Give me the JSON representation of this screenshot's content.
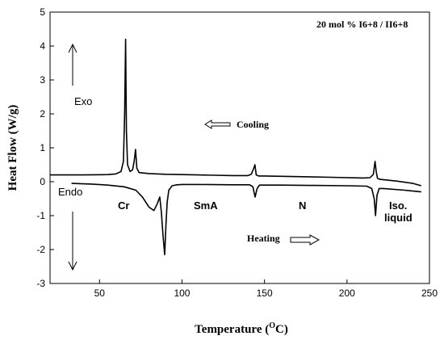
{
  "chart_data": {
    "type": "line",
    "title": "",
    "xlabel_main": "Temperature (",
    "xlabel_sup": "O",
    "xlabel_tail": "C)",
    "ylabel": "Heat Flow (W/g)",
    "xlim": [
      20,
      250
    ],
    "ylim": [
      -3,
      5
    ],
    "x_ticks": [
      50,
      100,
      150,
      200,
      250
    ],
    "y_ticks": [
      -3,
      -2,
      -1,
      0,
      1,
      2,
      3,
      4,
      5
    ],
    "grid": false,
    "legend": "none",
    "series": [
      {
        "label": "Cooling",
        "x": [
          20,
          40,
          55,
          60,
          63,
          64.5,
          65.2,
          65.8,
          66.3,
          67,
          68.5,
          70,
          71,
          71.8,
          72.6,
          74,
          80,
          90,
          100,
          110,
          120,
          130,
          140,
          142,
          143.5,
          144.2,
          145,
          146.5,
          150,
          170,
          190,
          210,
          214,
          216,
          217,
          217.7,
          218.5,
          220,
          230,
          240,
          245
        ],
        "y": [
          0.2,
          0.2,
          0.21,
          0.23,
          0.3,
          0.6,
          2.0,
          4.2,
          1.5,
          0.5,
          0.3,
          0.35,
          0.6,
          0.95,
          0.4,
          0.27,
          0.24,
          0.22,
          0.21,
          0.2,
          0.19,
          0.18,
          0.18,
          0.22,
          0.4,
          0.5,
          0.2,
          0.17,
          0.17,
          0.15,
          0.13,
          0.11,
          0.12,
          0.22,
          0.6,
          0.3,
          0.1,
          0.07,
          0.02,
          -0.05,
          -0.12
        ]
      },
      {
        "label": "Heating",
        "x": [
          33,
          45,
          55,
          65,
          72,
          76,
          80,
          83,
          85,
          86.5,
          87.5,
          88.5,
          89.5,
          90.2,
          91,
          92,
          94,
          97,
          100,
          110,
          130,
          141,
          143,
          144.3,
          145.5,
          147,
          160,
          180,
          200,
          212,
          215,
          216.5,
          217.3,
          218.2,
          219.5,
          222,
          235,
          245
        ],
        "y": [
          -0.05,
          -0.07,
          -0.1,
          -0.15,
          -0.25,
          -0.45,
          -0.75,
          -0.85,
          -0.65,
          -0.45,
          -0.9,
          -1.6,
          -2.15,
          -1.3,
          -0.6,
          -0.25,
          -0.12,
          -0.09,
          -0.08,
          -0.08,
          -0.09,
          -0.09,
          -0.15,
          -0.45,
          -0.2,
          -0.1,
          -0.1,
          -0.11,
          -0.12,
          -0.13,
          -0.2,
          -0.5,
          -1.0,
          -0.4,
          -0.2,
          -0.2,
          -0.25,
          -0.3
        ]
      }
    ],
    "annotations": {
      "sample_label": "20 mol % I6+8 / II6+8",
      "exo": "Exo",
      "endo": "Endo",
      "cooling": "Cooling",
      "heating": "Heating",
      "phases": [
        "Cr",
        "SmA",
        "N"
      ],
      "iso_line1": "Iso.",
      "iso_line2": "liquid"
    },
    "colors": {
      "line": "#000000",
      "axis": "#000000",
      "background": "#ffffff"
    }
  }
}
